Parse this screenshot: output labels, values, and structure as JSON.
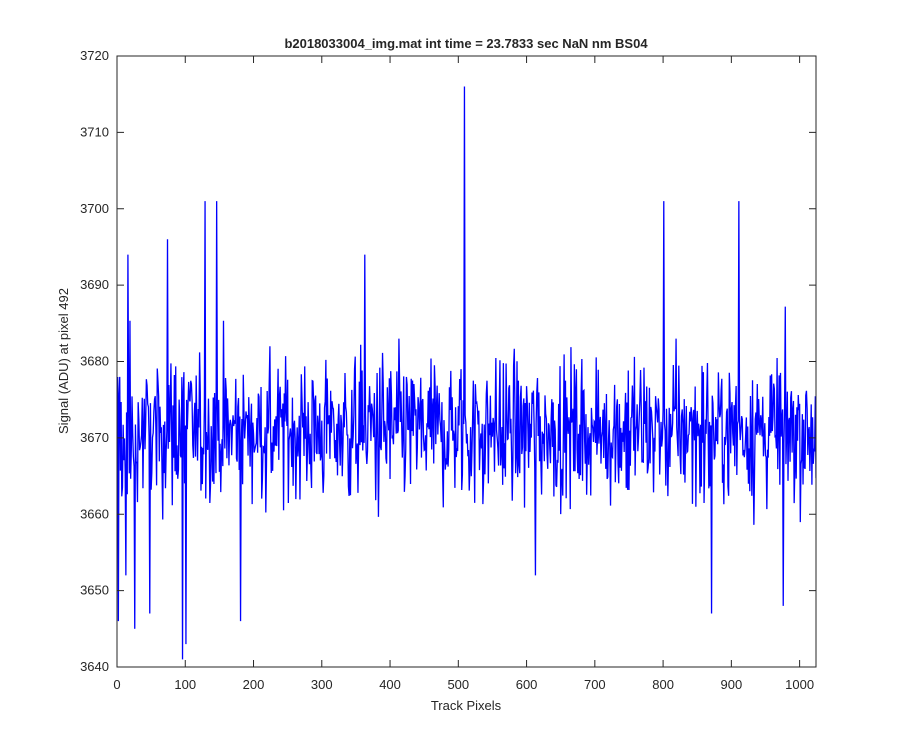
{
  "colors": {
    "series": "#0000ff",
    "axes": "#262626",
    "background": "#ffffff"
  },
  "chart_data": {
    "type": "line",
    "title": "b2018033004_img.mat int time = 23.7833 sec  NaN nm BS04",
    "xlabel": "Track Pixels",
    "ylabel": "Signal (ADU) at pixel 492",
    "xlim": [
      0,
      1024
    ],
    "ylim": [
      3640,
      3720
    ],
    "xticks": [
      0,
      100,
      200,
      300,
      400,
      500,
      600,
      700,
      800,
      900,
      1000
    ],
    "yticks": [
      3640,
      3650,
      3660,
      3670,
      3680,
      3690,
      3700,
      3710,
      3720
    ],
    "grid": false,
    "box": true,
    "series": [
      {
        "baseline": 3671,
        "n_points": 1024,
        "notable_points": [
          {
            "x": 1,
            "y": 3646
          },
          {
            "x": 15,
            "y": 3694
          },
          {
            "x": 12,
            "y": 3652
          },
          {
            "x": 25,
            "y": 3645
          },
          {
            "x": 47,
            "y": 3647
          },
          {
            "x": 73,
            "y": 3696
          },
          {
            "x": 95,
            "y": 3641
          },
          {
            "x": 100,
            "y": 3643
          },
          {
            "x": 128,
            "y": 3701
          },
          {
            "x": 145,
            "y": 3701
          },
          {
            "x": 180,
            "y": 3646
          },
          {
            "x": 362,
            "y": 3694
          },
          {
            "x": 508,
            "y": 3716
          },
          {
            "x": 612,
            "y": 3652
          },
          {
            "x": 800,
            "y": 3701
          },
          {
            "x": 870,
            "y": 3647
          },
          {
            "x": 910,
            "y": 3701
          },
          {
            "x": 975,
            "y": 3648
          }
        ]
      }
    ]
  }
}
